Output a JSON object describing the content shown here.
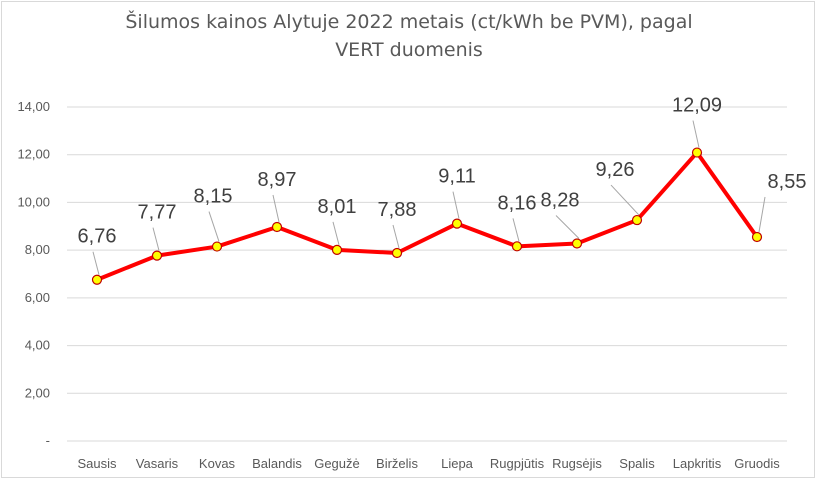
{
  "chart_data": {
    "type": "line",
    "title_line1": "Šilumos kainos Alytuje 2022 metais (ct/kWh be PVM), pagal",
    "title_line2": "VERT duomenis",
    "categories": [
      "Sausis",
      "Vasaris",
      "Kovas",
      "Balandis",
      "Gegužė",
      "Birželis",
      "Liepa",
      "Rugpjūtis",
      "Rugsėjis",
      "Spalis",
      "Lapkritis",
      "Gruodis"
    ],
    "values": [
      6.76,
      7.77,
      8.15,
      8.97,
      8.01,
      7.88,
      9.11,
      8.16,
      8.28,
      9.26,
      12.09,
      8.55
    ],
    "data_labels": [
      "6,76",
      "7,77",
      "8,15",
      "8,97",
      "8,01",
      "7,88",
      "9,11",
      "8,16",
      "8,28",
      "9,26",
      "12,09",
      "8,55"
    ],
    "ylim": [
      0,
      14
    ],
    "yticks": [
      0,
      2,
      4,
      6,
      8,
      10,
      12,
      14
    ],
    "ytick_labels": [
      "-",
      "2,00",
      "4,00",
      "6,00",
      "8,00",
      "10,00",
      "12,00",
      "14,00"
    ],
    "grid": true,
    "line_color": "#ff0000",
    "marker_fill": "#ffff00",
    "marker_edge": "#c00000",
    "label_color": "#404040",
    "axis_label_color": "#595959",
    "grid_color": "#d9d9d9",
    "leader_color": "#a6a6a6"
  }
}
